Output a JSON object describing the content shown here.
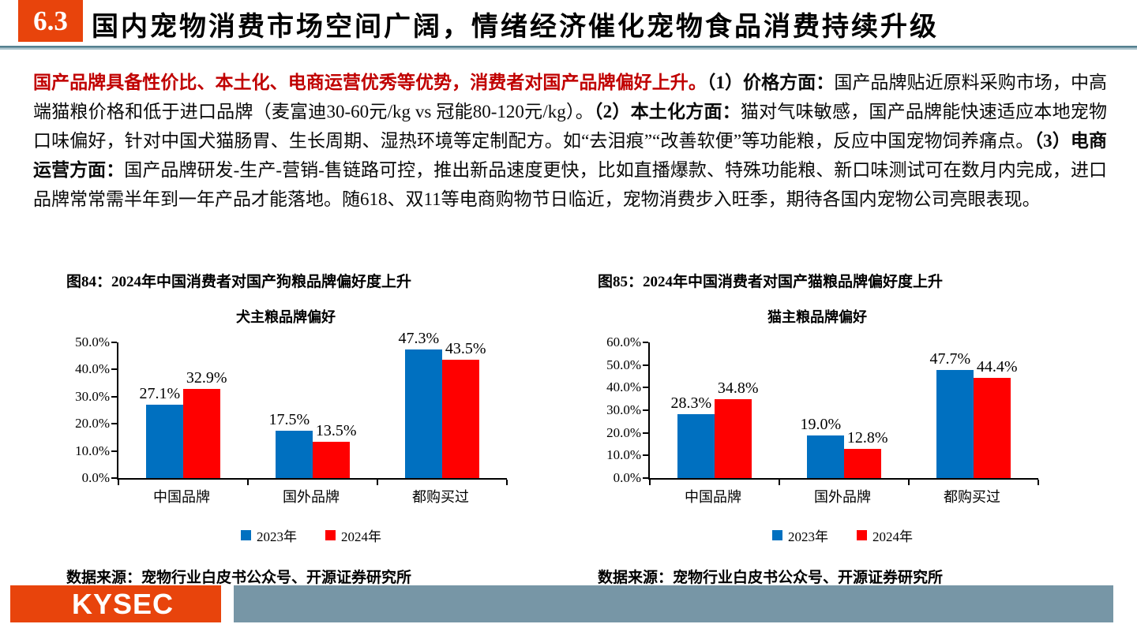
{
  "header": {
    "section_number": "6.3",
    "title": "国内宠物消费市场空间广阔，情绪经济催化宠物食品消费持续升级"
  },
  "paragraph": {
    "highlight": "国产品牌具备性价比、本土化、电商运营优秀等优势，消费者对国产品牌偏好上升。",
    "point1_label": "（1）价格方面：",
    "point1_text": "国产品牌贴近原料采购市场，中高端猫粮价格和低于进口品牌（麦富迪30-60元/kg vs 冠能80-120元/kg）。",
    "point2_label": "（2）本土化方面：",
    "point2_text": "猫对气味敏感，国产品牌能快速适应本地宠物口味偏好，针对中国犬猫肠胃、生长周期、湿热环境等定制配方。如“去泪痕”“改善软便”等功能粮，反应中国宠物饲养痛点。",
    "point3_label": "（3）电商运营方面：",
    "point3_text": "国产品牌研发-生产-营销-售链路可控，推出新品速度更快，比如直播爆款、特殊功能粮、新口味测试可在数月内完成，进口品牌常常需半年到一年产品才能落地。随618、双11等电商购物节日临近，宠物消费步入旺季，期待各国内宠物公司亮眼表现。"
  },
  "chart_data": [
    {
      "type": "bar",
      "figure_caption": "图84：2024年中国消费者对国产狗粮品牌偏好度上升",
      "title": "犬主粮品牌偏好",
      "categories": [
        "中国品牌",
        "国外品牌",
        "都购买过"
      ],
      "series": [
        {
          "name": "2023年",
          "color": "#0070C0",
          "values": [
            27.1,
            17.5,
            47.3
          ]
        },
        {
          "name": "2024年",
          "color": "#FF0000",
          "values": [
            32.9,
            13.5,
            43.5
          ]
        }
      ],
      "ylim": [
        0,
        50
      ],
      "ytick_step": 10,
      "ytick_format": "0.0%",
      "grid": false,
      "legend_position": "bottom",
      "source": "数据来源：宠物行业白皮书公众号、开源证券研究所"
    },
    {
      "type": "bar",
      "figure_caption": "图85：2024年中国消费者对国产猫粮品牌偏好度上升",
      "title": "猫主粮品牌偏好",
      "categories": [
        "中国品牌",
        "国外品牌",
        "都购买过"
      ],
      "series": [
        {
          "name": "2023年",
          "color": "#0070C0",
          "values": [
            28.3,
            19.0,
            47.7
          ]
        },
        {
          "name": "2024年",
          "color": "#FF0000",
          "values": [
            34.8,
            12.8,
            44.4
          ]
        }
      ],
      "ylim": [
        0,
        60
      ],
      "ytick_step": 10,
      "ytick_format": "0.0%",
      "grid": false,
      "legend_position": "bottom",
      "source": "数据来源：宠物行业白皮书公众号、开源证券研究所"
    }
  ],
  "footer": {
    "logo_text": "KYSEC"
  },
  "colors": {
    "accent_orange": "#E8440C",
    "highlight_red": "#C00000",
    "bar_blue": "#0070C0",
    "bar_red": "#FF0000",
    "footer_gray": "#7796A6",
    "divider_dark": "#54808F",
    "divider_light": "#AFC6CF"
  }
}
